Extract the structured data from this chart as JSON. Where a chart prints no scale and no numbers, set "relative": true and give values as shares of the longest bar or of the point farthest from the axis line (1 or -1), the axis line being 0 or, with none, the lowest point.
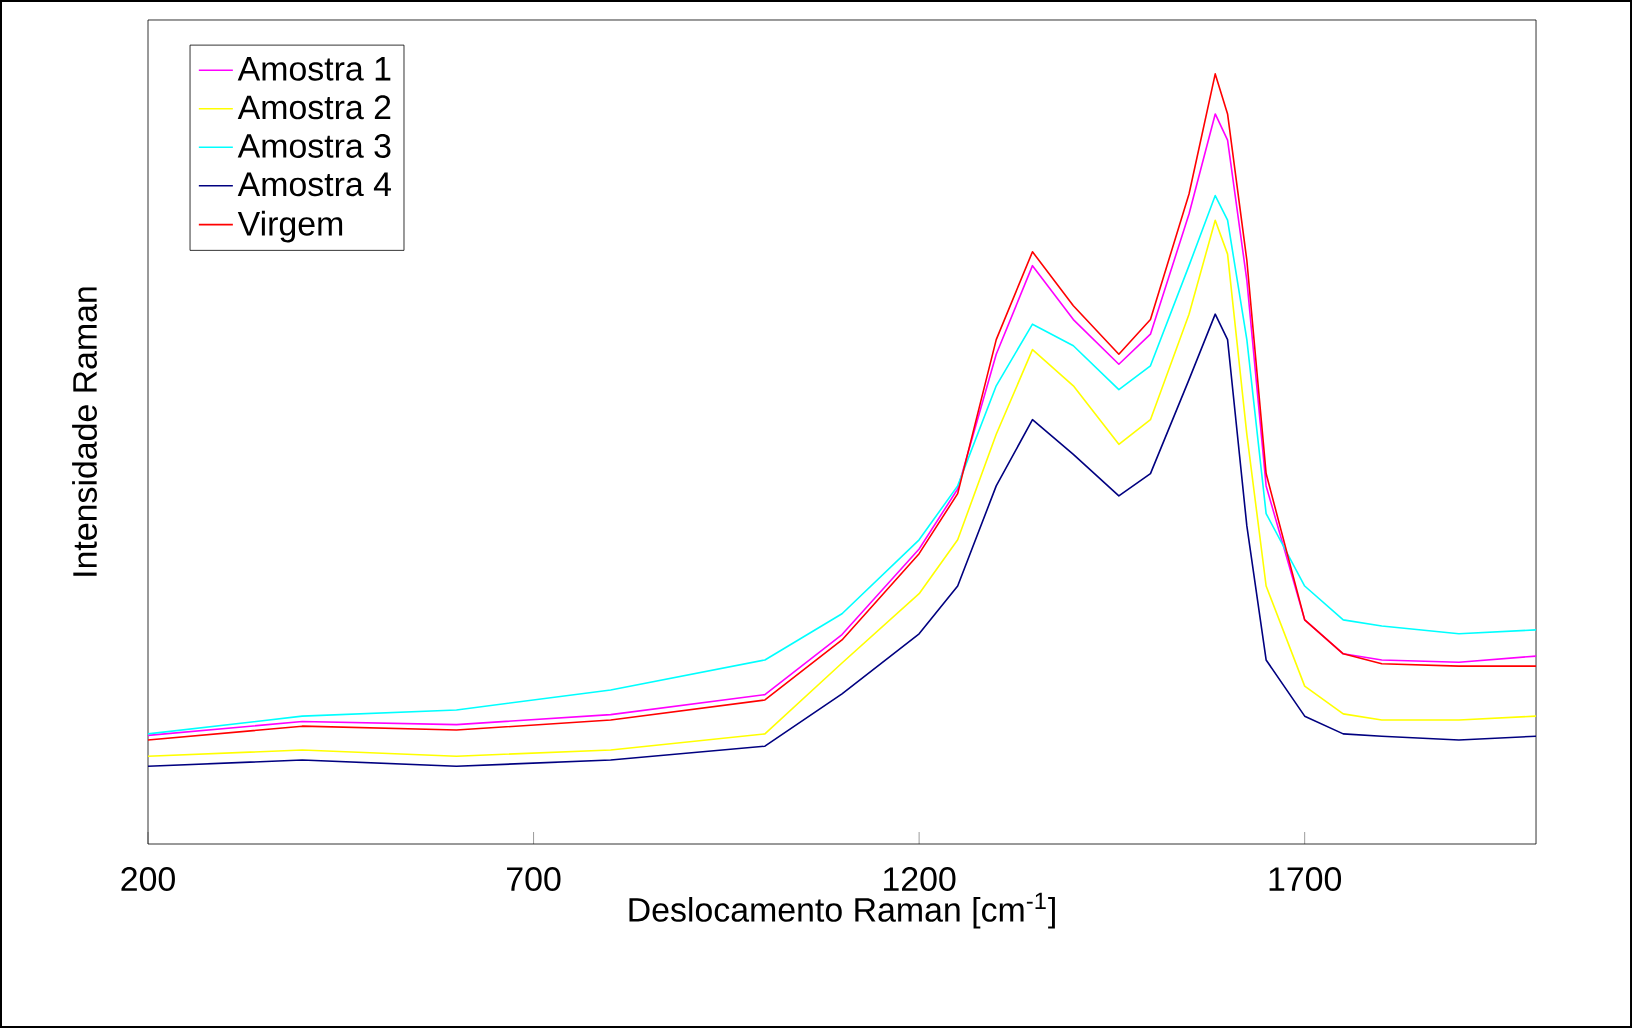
{
  "chart_data": {
    "type": "line",
    "relative": true,
    "xlabel": "Deslocamento Raman [cm$^{-1}$]",
    "ylabel": "Intensidade Raman",
    "xlim": [
      200,
      2000
    ],
    "xticks": [
      200,
      700,
      1200,
      1700
    ],
    "grid": false,
    "legend": "top left",
    "marker": "none",
    "line_style": "solid",
    "x": [
      200,
      400,
      600,
      800,
      1000,
      1100,
      1200,
      1250,
      1300,
      1347,
      1400,
      1459,
      1500,
      1550,
      1584,
      1600,
      1625,
      1650,
      1700,
      1750,
      1800,
      1900,
      2000
    ],
    "series": [
      {
        "name": "Amostra 1",
        "color": "#ff00ff",
        "values": [
          0.141,
          0.159,
          0.155,
          0.168,
          0.194,
          0.272,
          0.383,
          0.461,
          0.636,
          0.751,
          0.681,
          0.623,
          0.662,
          0.818,
          0.948,
          0.914,
          0.732,
          0.465,
          0.291,
          0.247,
          0.239,
          0.236,
          0.244
        ]
      },
      {
        "name": "Amostra 2",
        "color": "#ffff00",
        "values": [
          0.114,
          0.122,
          0.114,
          0.122,
          0.143,
          0.235,
          0.325,
          0.395,
          0.532,
          0.642,
          0.595,
          0.519,
          0.551,
          0.688,
          0.81,
          0.766,
          0.532,
          0.335,
          0.205,
          0.169,
          0.161,
          0.161,
          0.166
        ]
      },
      {
        "name": "Amostra 3",
        "color": "#00ffff",
        "values": [
          0.143,
          0.166,
          0.174,
          0.2,
          0.239,
          0.299,
          0.395,
          0.465,
          0.595,
          0.675,
          0.647,
          0.59,
          0.621,
          0.751,
          0.842,
          0.81,
          0.655,
          0.429,
          0.335,
          0.291,
          0.283,
          0.273,
          0.278
        ]
      },
      {
        "name": "Amostra 4",
        "color": "#000080",
        "values": [
          0.101,
          0.109,
          0.101,
          0.109,
          0.127,
          0.195,
          0.273,
          0.335,
          0.465,
          0.551,
          0.506,
          0.452,
          0.481,
          0.603,
          0.688,
          0.655,
          0.413,
          0.239,
          0.166,
          0.143,
          0.14,
          0.135,
          0.14
        ]
      },
      {
        "name": "Virgem",
        "color": "#ff0000",
        "values": [
          0.135,
          0.153,
          0.148,
          0.161,
          0.187,
          0.265,
          0.377,
          0.455,
          0.655,
          0.769,
          0.699,
          0.636,
          0.681,
          0.844,
          1.0,
          0.948,
          0.758,
          0.481,
          0.291,
          0.247,
          0.234,
          0.231,
          0.231
        ]
      }
    ]
  }
}
